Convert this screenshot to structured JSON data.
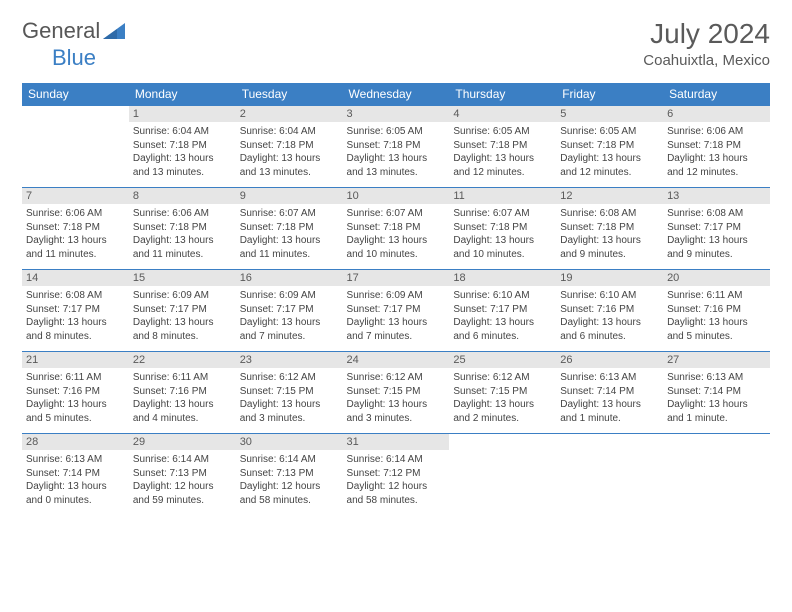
{
  "logo": {
    "text_general": "General",
    "text_blue": "Blue"
  },
  "title": "July 2024",
  "location": "Coahuixtla, Mexico",
  "header_bg": "#3b7fc4",
  "day_headers": [
    "Sunday",
    "Monday",
    "Tuesday",
    "Wednesday",
    "Thursday",
    "Friday",
    "Saturday"
  ],
  "weeks": [
    [
      null,
      {
        "n": 1,
        "sunrise": "6:04 AM",
        "sunset": "7:18 PM",
        "daylight": "13 hours and 13 minutes."
      },
      {
        "n": 2,
        "sunrise": "6:04 AM",
        "sunset": "7:18 PM",
        "daylight": "13 hours and 13 minutes."
      },
      {
        "n": 3,
        "sunrise": "6:05 AM",
        "sunset": "7:18 PM",
        "daylight": "13 hours and 13 minutes."
      },
      {
        "n": 4,
        "sunrise": "6:05 AM",
        "sunset": "7:18 PM",
        "daylight": "13 hours and 12 minutes."
      },
      {
        "n": 5,
        "sunrise": "6:05 AM",
        "sunset": "7:18 PM",
        "daylight": "13 hours and 12 minutes."
      },
      {
        "n": 6,
        "sunrise": "6:06 AM",
        "sunset": "7:18 PM",
        "daylight": "13 hours and 12 minutes."
      }
    ],
    [
      {
        "n": 7,
        "sunrise": "6:06 AM",
        "sunset": "7:18 PM",
        "daylight": "13 hours and 11 minutes."
      },
      {
        "n": 8,
        "sunrise": "6:06 AM",
        "sunset": "7:18 PM",
        "daylight": "13 hours and 11 minutes."
      },
      {
        "n": 9,
        "sunrise": "6:07 AM",
        "sunset": "7:18 PM",
        "daylight": "13 hours and 11 minutes."
      },
      {
        "n": 10,
        "sunrise": "6:07 AM",
        "sunset": "7:18 PM",
        "daylight": "13 hours and 10 minutes."
      },
      {
        "n": 11,
        "sunrise": "6:07 AM",
        "sunset": "7:18 PM",
        "daylight": "13 hours and 10 minutes."
      },
      {
        "n": 12,
        "sunrise": "6:08 AM",
        "sunset": "7:18 PM",
        "daylight": "13 hours and 9 minutes."
      },
      {
        "n": 13,
        "sunrise": "6:08 AM",
        "sunset": "7:17 PM",
        "daylight": "13 hours and 9 minutes."
      }
    ],
    [
      {
        "n": 14,
        "sunrise": "6:08 AM",
        "sunset": "7:17 PM",
        "daylight": "13 hours and 8 minutes."
      },
      {
        "n": 15,
        "sunrise": "6:09 AM",
        "sunset": "7:17 PM",
        "daylight": "13 hours and 8 minutes."
      },
      {
        "n": 16,
        "sunrise": "6:09 AM",
        "sunset": "7:17 PM",
        "daylight": "13 hours and 7 minutes."
      },
      {
        "n": 17,
        "sunrise": "6:09 AM",
        "sunset": "7:17 PM",
        "daylight": "13 hours and 7 minutes."
      },
      {
        "n": 18,
        "sunrise": "6:10 AM",
        "sunset": "7:17 PM",
        "daylight": "13 hours and 6 minutes."
      },
      {
        "n": 19,
        "sunrise": "6:10 AM",
        "sunset": "7:16 PM",
        "daylight": "13 hours and 6 minutes."
      },
      {
        "n": 20,
        "sunrise": "6:11 AM",
        "sunset": "7:16 PM",
        "daylight": "13 hours and 5 minutes."
      }
    ],
    [
      {
        "n": 21,
        "sunrise": "6:11 AM",
        "sunset": "7:16 PM",
        "daylight": "13 hours and 5 minutes."
      },
      {
        "n": 22,
        "sunrise": "6:11 AM",
        "sunset": "7:16 PM",
        "daylight": "13 hours and 4 minutes."
      },
      {
        "n": 23,
        "sunrise": "6:12 AM",
        "sunset": "7:15 PM",
        "daylight": "13 hours and 3 minutes."
      },
      {
        "n": 24,
        "sunrise": "6:12 AM",
        "sunset": "7:15 PM",
        "daylight": "13 hours and 3 minutes."
      },
      {
        "n": 25,
        "sunrise": "6:12 AM",
        "sunset": "7:15 PM",
        "daylight": "13 hours and 2 minutes."
      },
      {
        "n": 26,
        "sunrise": "6:13 AM",
        "sunset": "7:14 PM",
        "daylight": "13 hours and 1 minute."
      },
      {
        "n": 27,
        "sunrise": "6:13 AM",
        "sunset": "7:14 PM",
        "daylight": "13 hours and 1 minute."
      }
    ],
    [
      {
        "n": 28,
        "sunrise": "6:13 AM",
        "sunset": "7:14 PM",
        "daylight": "13 hours and 0 minutes."
      },
      {
        "n": 29,
        "sunrise": "6:14 AM",
        "sunset": "7:13 PM",
        "daylight": "12 hours and 59 minutes."
      },
      {
        "n": 30,
        "sunrise": "6:14 AM",
        "sunset": "7:13 PM",
        "daylight": "12 hours and 58 minutes."
      },
      {
        "n": 31,
        "sunrise": "6:14 AM",
        "sunset": "7:12 PM",
        "daylight": "12 hours and 58 minutes."
      },
      null,
      null,
      null
    ]
  ],
  "labels": {
    "sunrise": "Sunrise:",
    "sunset": "Sunset:",
    "daylight": "Daylight:"
  }
}
